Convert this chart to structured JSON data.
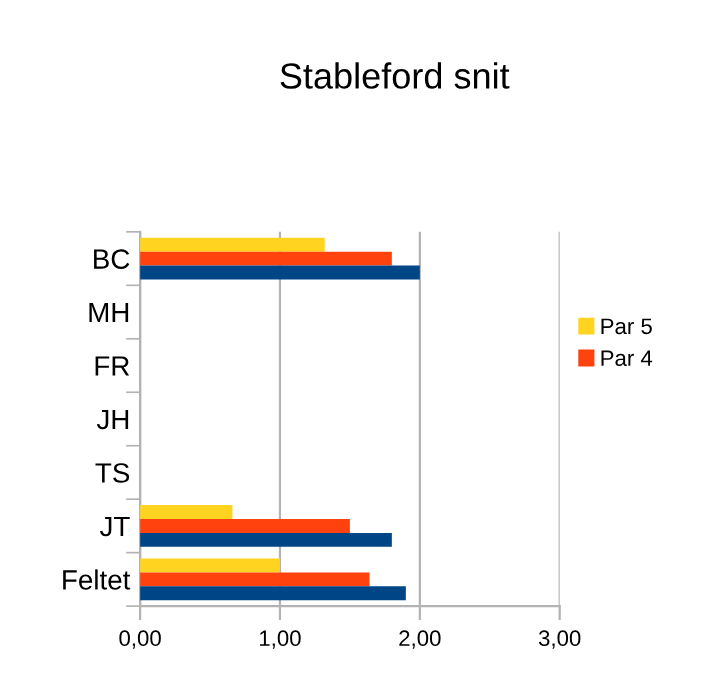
{
  "chart_data": {
    "type": "bar",
    "orientation": "horizontal",
    "title": "Stableford snit",
    "categories": [
      "BC",
      "MH",
      "FR",
      "JH",
      "TS",
      "JT",
      "Feltet"
    ],
    "series": [
      {
        "name": "Par 5",
        "color": "#ffd320",
        "values": [
          1.32,
          null,
          null,
          null,
          null,
          0.66,
          1.0
        ]
      },
      {
        "name": "Par 4",
        "color": "#ff420e",
        "values": [
          1.8,
          null,
          null,
          null,
          null,
          1.5,
          1.64
        ]
      },
      {
        "color": "#004586",
        "values": [
          2.0,
          null,
          null,
          null,
          null,
          1.8,
          1.9
        ]
      }
    ],
    "xlim": [
      0,
      3
    ],
    "xticks": [
      {
        "value": 0,
        "label": "0,00"
      },
      {
        "value": 1,
        "label": "1,00"
      },
      {
        "value": 2,
        "label": "2,00"
      },
      {
        "value": 3,
        "label": "3,00"
      }
    ],
    "grid": "x",
    "legend": "right"
  }
}
